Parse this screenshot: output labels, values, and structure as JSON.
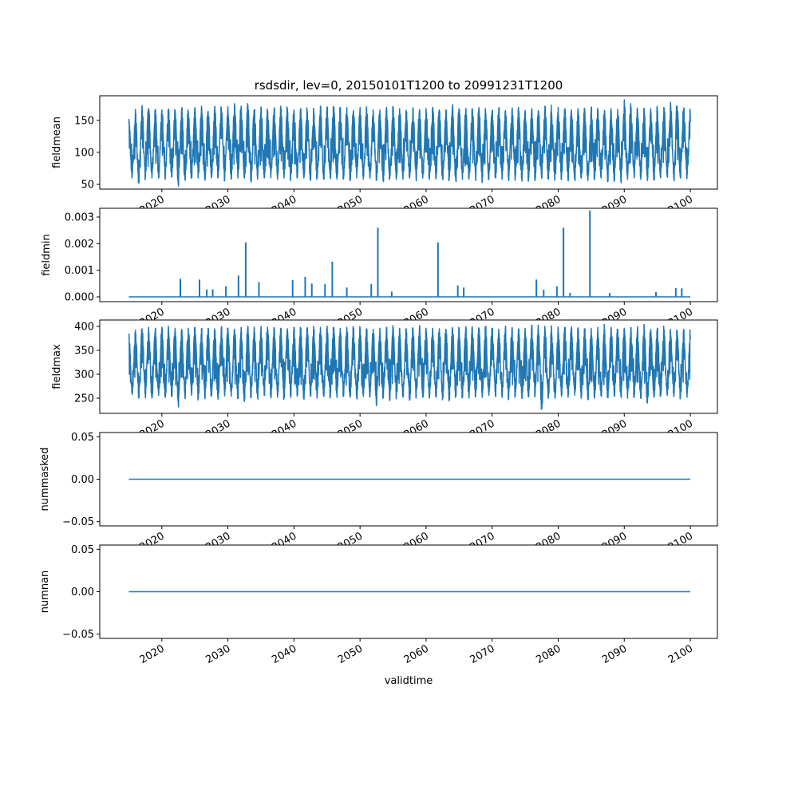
{
  "chart_data": {
    "type": "line",
    "title": "rsdsdir, lev=0, 20150101T1200 to 20991231T1200",
    "xlabel": "validtime",
    "xlim": [
      2010.6,
      2104.1
    ],
    "x_range": [
      2015.0,
      2100.0
    ],
    "xticks": [
      2020,
      2030,
      2040,
      2050,
      2060,
      2070,
      2080,
      2090,
      2100
    ],
    "xtick_labels": [
      "2020",
      "2030",
      "2040",
      "2050",
      "2060",
      "2070",
      "2080",
      "2090",
      "2100"
    ],
    "line_color": "#1f77b4",
    "panels": [
      {
        "ylabel": "fieldmean",
        "ylim": [
          42.6,
          188.3
        ],
        "yticks": [
          50,
          100,
          150
        ],
        "ytick_labels": [
          "50",
          "100",
          "150"
        ],
        "kind": "seasonal",
        "mid_secondary": 100,
        "yearly_peak": [
          152,
          167,
          173,
          168,
          166,
          166,
          166,
          166,
          168,
          166,
          168,
          172,
          164,
          170,
          168,
          171,
          176,
          172,
          176,
          166,
          170,
          165,
          168,
          172,
          168,
          166,
          168,
          166,
          166,
          172,
          170,
          168,
          168,
          170,
          165,
          170,
          168,
          166,
          166,
          170,
          168,
          168,
          164,
          168,
          166,
          168,
          170,
          166,
          166,
          170,
          166,
          165,
          168,
          170,
          166,
          165,
          168,
          165,
          167,
          170,
          165,
          168,
          165,
          172,
          162,
          170,
          165,
          166,
          168,
          164,
          170,
          166,
          164,
          168,
          167,
          182,
          168,
          166,
          165,
          168,
          164,
          170,
          178,
          172,
          168
        ],
        "yearly_trough": [
          62,
          52,
          60,
          60,
          60,
          58,
          62,
          50,
          58,
          60,
          60,
          58,
          60,
          60,
          56,
          58,
          60,
          60,
          58,
          58,
          60,
          60,
          58,
          60,
          58,
          60,
          60,
          58,
          60,
          60,
          60,
          58,
          58,
          56,
          60,
          58,
          60,
          58,
          56,
          60,
          58,
          58,
          60,
          58,
          60,
          58,
          60,
          58,
          58,
          56,
          58,
          58,
          60,
          56,
          58,
          60,
          58,
          56,
          60,
          58,
          58,
          56,
          60,
          58,
          60,
          58,
          56,
          58,
          60,
          56,
          58,
          60,
          58,
          56,
          54,
          58,
          60,
          58,
          56,
          58,
          60,
          62,
          58,
          60,
          62
        ]
      },
      {
        "ylabel": "fieldmin",
        "ylim": [
          -0.00018,
          0.00333
        ],
        "yticks": [
          0.0,
          0.001,
          0.002,
          0.003
        ],
        "ytick_labels": [
          "0.000",
          "0.001",
          "0.002",
          "0.003"
        ],
        "kind": "spikes",
        "baseline": 0.0,
        "spikes": [
          [
            2022.8,
            0.00068
          ],
          [
            2025.7,
            0.00065
          ],
          [
            2026.8,
            0.00028
          ],
          [
            2027.7,
            0.00028
          ],
          [
            2029.7,
            0.0004
          ],
          [
            2031.6,
            0.0008
          ],
          [
            2032.7,
            0.00205
          ],
          [
            2034.7,
            0.00055
          ],
          [
            2039.8,
            0.00063
          ],
          [
            2041.7,
            0.00075
          ],
          [
            2042.7,
            0.0005
          ],
          [
            2044.7,
            0.00048
          ],
          [
            2045.8,
            0.00132
          ],
          [
            2048.0,
            0.00035
          ],
          [
            2051.7,
            0.00048
          ],
          [
            2052.7,
            0.0026
          ],
          [
            2054.8,
            0.0002
          ],
          [
            2061.8,
            0.00205
          ],
          [
            2064.8,
            0.00043
          ],
          [
            2065.7,
            0.00035
          ],
          [
            2076.7,
            0.00065
          ],
          [
            2077.8,
            0.00027
          ],
          [
            2079.8,
            0.0004
          ],
          [
            2080.8,
            0.0026
          ],
          [
            2081.8,
            0.00015
          ],
          [
            2084.8,
            0.00325
          ],
          [
            2087.8,
            0.00015
          ],
          [
            2094.8,
            0.00018
          ],
          [
            2097.8,
            0.00033
          ],
          [
            2098.7,
            0.00032
          ]
        ]
      },
      {
        "ylabel": "fieldmax",
        "ylim": [
          218.3,
          413.3
        ],
        "yticks": [
          250,
          300,
          350,
          400
        ],
        "ytick_labels": [
          "250",
          "300",
          "350",
          "400"
        ],
        "kind": "seasonal",
        "mid_secondary": 305,
        "yearly_peak": [
          385,
          392,
          395,
          398,
          394,
          396,
          400,
          396,
          394,
          396,
          398,
          394,
          396,
          395,
          398,
          396,
          394,
          398,
          396,
          394,
          396,
          398,
          394,
          396,
          395,
          398,
          394,
          396,
          394,
          398,
          396,
          394,
          396,
          398,
          394,
          396,
          395,
          394,
          396,
          398,
          394,
          396,
          394,
          396,
          398,
          394,
          396,
          395,
          394,
          398,
          396,
          394,
          396,
          394,
          398,
          396,
          394,
          396,
          395,
          394,
          396,
          398,
          394,
          396,
          394,
          396,
          398,
          394,
          396,
          394,
          396,
          398,
          394,
          396,
          394,
          396,
          398,
          394,
          404,
          392,
          396,
          394,
          390,
          392,
          392
        ],
        "yearly_trough": [
          258,
          252,
          255,
          250,
          256,
          252,
          254,
          238,
          254,
          256,
          252,
          254,
          256,
          248,
          255,
          254,
          252,
          244,
          254,
          252,
          256,
          254,
          252,
          250,
          254,
          256,
          252,
          254,
          250,
          254,
          252,
          256,
          254,
          252,
          250,
          254,
          252,
          236,
          252,
          250,
          254,
          252,
          246,
          254,
          252,
          250,
          254,
          252,
          244,
          254,
          252,
          250,
          254,
          252,
          256,
          254,
          252,
          250,
          254,
          252,
          256,
          254,
          227,
          252,
          250,
          254,
          252,
          256,
          254,
          252,
          250,
          254,
          252,
          256,
          254,
          250,
          252,
          250,
          240,
          252,
          254,
          256,
          254,
          250,
          252
        ]
      },
      {
        "ylabel": "nummasked",
        "ylim": [
          -0.055,
          0.055
        ],
        "yticks": [
          -0.05,
          0.0,
          0.05
        ],
        "ytick_labels": [
          "−0.05",
          "0.00",
          "0.05"
        ],
        "kind": "constant",
        "value": 0.0
      },
      {
        "ylabel": "numnan",
        "ylim": [
          -0.055,
          0.055
        ],
        "yticks": [
          -0.05,
          0.0,
          0.05
        ],
        "ytick_labels": [
          "−0.05",
          "0.00",
          "0.05"
        ],
        "kind": "constant",
        "value": 0.0
      }
    ]
  }
}
